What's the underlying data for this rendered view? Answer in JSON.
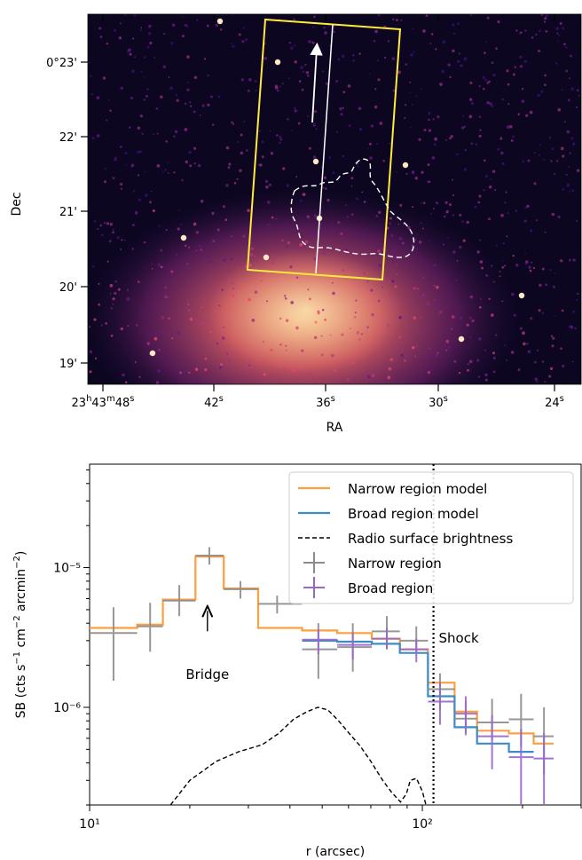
{
  "chart_data": [
    {
      "type": "heatmap",
      "xlabel": "RA",
      "ylabel": "Dec",
      "ra_ticks": [
        {
          "h": "23",
          "m": "43",
          "s": "48"
        },
        {
          "s": "42"
        },
        {
          "s": "36"
        },
        {
          "s": "30"
        },
        {
          "s": "24"
        }
      ],
      "dec_ticks": [
        {
          "d": "0",
          "m": "23"
        },
        {
          "m": "22"
        },
        {
          "m": "21"
        },
        {
          "m": "20"
        },
        {
          "m": "19"
        }
      ],
      "dec_tick_values": [
        "0°23'",
        "22'",
        "21'",
        "20'",
        "19'"
      ],
      "colormap": "magma",
      "overlays": {
        "region_box": "yellow rectangle",
        "profile_line": "white line with arrow",
        "contour": "white dashed radio contour"
      },
      "colors": {
        "box": "#ffeb3b",
        "line": "#ffffff",
        "contour": "#ffffff"
      }
    },
    {
      "type": "line",
      "xlabel": "r (arcsec)",
      "ylabel": "SB (cts s⁻¹ cm⁻² arcmin⁻²)",
      "x_scale": "log",
      "y_scale": "log",
      "xlim": [
        10,
        300
      ],
      "ylim": [
        2e-07,
        5.5e-05
      ],
      "x_ticks": [
        10,
        100
      ],
      "x_tick_labels": [
        "10¹",
        "10²"
      ],
      "y_ticks": [
        1e-06,
        1e-05
      ],
      "y_tick_labels": [
        "10⁻⁶",
        "10⁻⁵"
      ],
      "legend_position": "top-right",
      "legend": [
        "Narrow region model",
        "Broad region model",
        "Radio surface brightness",
        "Narrow region",
        "Broad region"
      ],
      "series": [
        {
          "name": "Narrow region model",
          "kind": "step",
          "color": "#ff9f40",
          "edges": [
            10.0,
            13.9,
            16.6,
            20.8,
            25.3,
            32.1,
            43.5,
            55.5,
            70.5,
            85.6,
            104,
            125,
            146,
            182,
            216,
            248
          ],
          "values": [
            3.7e-06,
            3.9e-06,
            5.9e-06,
            1.2e-05,
            7.1e-06,
            3.7e-06,
            3.55e-06,
            3.4e-06,
            3.1e-06,
            2.6e-06,
            1.5e-06,
            9.3e-07,
            6.8e-07,
            6.5e-07,
            5.5e-07
          ]
        },
        {
          "name": "Broad region model",
          "kind": "step",
          "color": "#3b8dc4",
          "edges": [
            43.5,
            55.5,
            70.5,
            85.6,
            104,
            125,
            146,
            182,
            216
          ],
          "values": [
            3e-06,
            2.95e-06,
            2.85e-06,
            2.45e-06,
            1.2e-06,
            7.2e-07,
            5.5e-07,
            4.8e-07
          ]
        },
        {
          "name": "Radio surface brightness",
          "kind": "line",
          "style": "dashed",
          "color": "#000000",
          "x": [
            17.5,
            20,
            24,
            28,
            33,
            37,
            41,
            45,
            48.5,
            52,
            56,
            60,
            65,
            70,
            76,
            81,
            86,
            89.5,
            92,
            96,
            100,
            102.5
          ],
          "y": [
            2e-07,
            3e-07,
            4.1e-07,
            4.8e-07,
            5.4e-07,
            6.5e-07,
            8.2e-07,
            9.3e-07,
            1e-06,
            9.6e-07,
            8e-07,
            6.6e-07,
            5.3e-07,
            4.1e-07,
            3e-07,
            2.45e-07,
            2.1e-07,
            2.4e-07,
            3e-07,
            3.1e-07,
            2.5e-07,
            2e-07
          ]
        },
        {
          "name": "Narrow region",
          "kind": "errorbar",
          "color": "#8c8c8c",
          "x": [
            11.8,
            15.2,
            18.6,
            22.9,
            28.4,
            36.6,
            48.7,
            61.8,
            78.2,
            95.9,
            113,
            135,
            162,
            198,
            232
          ],
          "xerr_lo": [
            10.0,
            13.9,
            16.6,
            20.8,
            25.3,
            32.1,
            43.5,
            55.5,
            70.5,
            85.6,
            104,
            125,
            146,
            182,
            216
          ],
          "xerr_hi": [
            13.9,
            16.6,
            20.8,
            25.3,
            32.1,
            43.5,
            55.5,
            70.5,
            85.6,
            104,
            125,
            146,
            182,
            216,
            248
          ],
          "y": [
            3.4e-06,
            3.8e-06,
            5.8e-06,
            1.22e-05,
            7e-06,
            5.5e-06,
            2.6e-06,
            2.7e-06,
            3.5e-06,
            3e-06,
            1.35e-06,
            8.3e-07,
            7.8e-07,
            8.2e-07,
            6.2e-07
          ],
          "yerr_lo": [
            1.55e-06,
            2.5e-06,
            4.5e-06,
            1.05e-05,
            6e-06,
            4.7e-06,
            1.6e-06,
            1.8e-06,
            2.6e-06,
            2.5e-06,
            9.5e-07,
            6.3e-07,
            5.8e-07,
            5.2e-07,
            3.3e-07
          ],
          "yerr_hi": [
            5.2e-06,
            5.6e-06,
            7.5e-06,
            1.4e-05,
            8e-06,
            6.3e-06,
            4e-06,
            4e-06,
            4.5e-06,
            3.8e-06,
            1.75e-06,
            1.1e-06,
            1.15e-06,
            1.25e-06,
            1e-06
          ]
        },
        {
          "name": "Broad region",
          "kind": "errorbar",
          "color": "#9966cc",
          "x": [
            48.7,
            61.8,
            78.2,
            95.9,
            113,
            135,
            162,
            198,
            232
          ],
          "xerr_lo": [
            43.5,
            55.5,
            70.5,
            85.6,
            104,
            125,
            146,
            182,
            216
          ],
          "xerr_hi": [
            55.5,
            70.5,
            85.6,
            104,
            125,
            146,
            182,
            216,
            248
          ],
          "y": [
            3.05e-06,
            2.8e-06,
            3.1e-06,
            2.6e-06,
            1.1e-06,
            9e-07,
            6.2e-07,
            4.4e-07,
            4.3e-07
          ],
          "yerr_lo": [
            2.4e-06,
            2.2e-06,
            2.6e-06,
            2.1e-06,
            7.5e-07,
            6.5e-07,
            3.6e-07,
            2e-07,
            2e-07
          ],
          "yerr_hi": [
            3.6e-06,
            3.4e-06,
            3.7e-06,
            3.1e-06,
            1.5e-06,
            1.2e-06,
            8.8e-07,
            7e-07,
            6.5e-07
          ]
        }
      ],
      "vlines": [
        {
          "x": 108,
          "style": "dotted",
          "color": "#000000",
          "label": "Shock"
        }
      ],
      "annotations": [
        {
          "text": "Bridge",
          "x": 22.6,
          "y_text": 1.6e-06,
          "arrow_from": 3.5e-06,
          "arrow_to": 4.9e-06
        },
        {
          "text": "Shock",
          "x": 112,
          "y": 2.9e-06
        }
      ]
    }
  ]
}
